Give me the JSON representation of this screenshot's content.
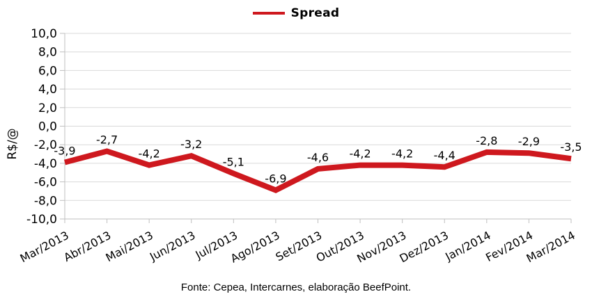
{
  "legend": {
    "label": "Spread"
  },
  "footer": {
    "source": "Fonte: Cepea, Intercarnes, elaboração BeefPoint."
  },
  "colors": {
    "line": "#CE181E",
    "gridline": "#D9D9D9",
    "axis": "#BFBFBF",
    "text": "#000000"
  },
  "chart_data": {
    "type": "line",
    "title": "",
    "xlabel": "",
    "ylabel": "R$/@",
    "ylim": [
      -10,
      10
    ],
    "grid": "horizontal",
    "legend_position": "top-center",
    "categories": [
      "Mar/2013",
      "Abr/2013",
      "Mai/2013",
      "Jun/2013",
      "Jul/2013",
      "Ago/2013",
      "Set/2013",
      "Out/2013",
      "Nov/2013",
      "Dez/2013",
      "Jan/2014",
      "Fev/2014",
      "Mar/2014"
    ],
    "yticks": [
      {
        "v": 10,
        "label": "10,0"
      },
      {
        "v": 8,
        "label": "8,0"
      },
      {
        "v": 6,
        "label": "6,0"
      },
      {
        "v": 4,
        "label": "4,0"
      },
      {
        "v": 2,
        "label": "2,0"
      },
      {
        "v": 0,
        "label": "0,0"
      },
      {
        "v": -2,
        "label": "-2,0"
      },
      {
        "v": -4,
        "label": "-4,0"
      },
      {
        "v": -6,
        "label": "-6,0"
      },
      {
        "v": -8,
        "label": "-8,0"
      },
      {
        "v": -10,
        "label": "-10,0"
      }
    ],
    "series": [
      {
        "name": "Spread",
        "color": "#CE181E",
        "values": [
          -3.9,
          -2.7,
          -4.2,
          -3.2,
          -5.1,
          -6.9,
          -4.6,
          -4.2,
          -4.2,
          -4.4,
          -2.8,
          -2.9,
          -3.5
        ],
        "data_labels": [
          "-3,9",
          "-2,7",
          "-4,2",
          "-3,2",
          "-5,1",
          "-6,9",
          "-4,6",
          "-4,2",
          "-4,2",
          "-4,4",
          "-2,8",
          "-2,9",
          "-3,5"
        ]
      }
    ]
  }
}
